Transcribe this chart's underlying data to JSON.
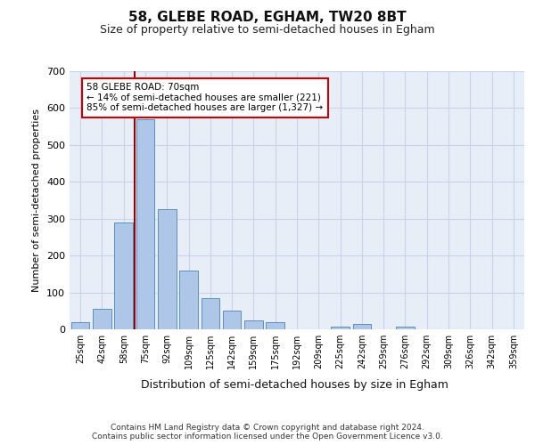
{
  "title1": "58, GLEBE ROAD, EGHAM, TW20 8BT",
  "title2": "Size of property relative to semi-detached houses in Egham",
  "xlabel": "Distribution of semi-detached houses by size in Egham",
  "ylabel": "Number of semi-detached properties",
  "categories": [
    "25sqm",
    "42sqm",
    "58sqm",
    "75sqm",
    "92sqm",
    "109sqm",
    "125sqm",
    "142sqm",
    "159sqm",
    "175sqm",
    "192sqm",
    "209sqm",
    "225sqm",
    "242sqm",
    "259sqm",
    "276sqm",
    "292sqm",
    "309sqm",
    "326sqm",
    "342sqm",
    "359sqm"
  ],
  "values": [
    20,
    55,
    290,
    570,
    325,
    160,
    85,
    50,
    25,
    20,
    0,
    0,
    8,
    15,
    0,
    8,
    0,
    0,
    0,
    0,
    0
  ],
  "bar_color": "#aec6e8",
  "bar_edge_color": "#5a8fc0",
  "red_line_x": 2.5,
  "annotation_text": "58 GLEBE ROAD: 70sqm\n← 14% of semi-detached houses are smaller (221)\n85% of semi-detached houses are larger (1,327) →",
  "annotation_box_color": "#ffffff",
  "annotation_box_edge": "#cc0000",
  "ylim": [
    0,
    700
  ],
  "yticks": [
    0,
    100,
    200,
    300,
    400,
    500,
    600,
    700
  ],
  "grid_color": "#c8d4e8",
  "background_color": "#e8eef8",
  "footer": "Contains HM Land Registry data © Crown copyright and database right 2024.\nContains public sector information licensed under the Open Government Licence v3.0.",
  "red_line_color": "#990000",
  "title1_fontsize": 11,
  "title2_fontsize": 9
}
